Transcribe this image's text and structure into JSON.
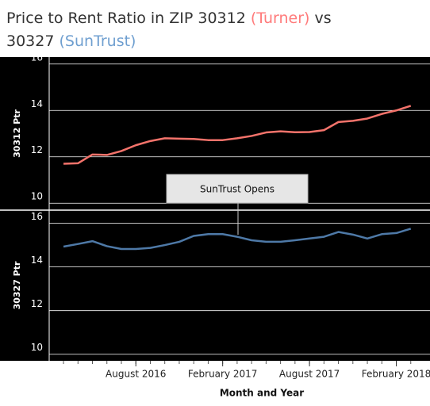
{
  "title": [
    {
      "text": "Price to Rent Ratio in ZIP 30312 ",
      "color": "#333333"
    },
    {
      "text": "(Turner)",
      "color": "#ff7b7b"
    },
    {
      "text": " vs",
      "color": "#333333"
    },
    {
      "text": "30327 ",
      "color": "#333333"
    },
    {
      "text": "(SunTrust)",
      "color": "#6f9fd0"
    }
  ],
  "annotation": "SunTrust Opens",
  "chart_data": [
    {
      "type": "line",
      "ylabel": "30312 Ptr",
      "x": [
        "2016-03",
        "2016-04",
        "2016-05",
        "2016-06",
        "2016-07",
        "2016-08",
        "2016-09",
        "2016-10",
        "2016-11",
        "2016-12",
        "2017-01",
        "2017-02",
        "2017-03",
        "2017-04",
        "2017-05",
        "2017-06",
        "2017-07",
        "2017-08",
        "2017-09",
        "2017-10",
        "2017-11",
        "2017-12",
        "2018-01",
        "2018-02",
        "2018-03"
      ],
      "xlim": [
        "2016-02",
        "2018-04"
      ],
      "ylim": [
        9.7,
        16.3
      ],
      "yticks": [
        10,
        12,
        14,
        16
      ],
      "grid": true,
      "series": [
        {
          "name": "30312 Ptr",
          "color": "#f4736b",
          "values": [
            11.7,
            11.72,
            12.1,
            12.08,
            12.25,
            12.5,
            12.68,
            12.8,
            12.78,
            12.77,
            12.72,
            12.72,
            12.8,
            12.9,
            13.05,
            13.1,
            13.06,
            13.07,
            13.15,
            13.5,
            13.55,
            13.65,
            13.85,
            14.0,
            14.2
          ]
        }
      ]
    },
    {
      "type": "line",
      "ylabel": "30327 Ptr",
      "xlabel": "Month and Year",
      "x": [
        "2016-03",
        "2016-04",
        "2016-05",
        "2016-06",
        "2016-07",
        "2016-08",
        "2016-09",
        "2016-10",
        "2016-11",
        "2016-12",
        "2017-01",
        "2017-02",
        "2017-03",
        "2017-04",
        "2017-05",
        "2017-06",
        "2017-07",
        "2017-08",
        "2017-09",
        "2017-10",
        "2017-11",
        "2017-12",
        "2018-01",
        "2018-02",
        "2018-03"
      ],
      "xlim": [
        "2016-02",
        "2018-04"
      ],
      "xticks": [
        {
          "value": "2016-08",
          "label": "August 2016"
        },
        {
          "value": "2017-02",
          "label": "February 2017"
        },
        {
          "value": "2017-08",
          "label": "August 2017"
        },
        {
          "value": "2018-02",
          "label": "February 2018"
        }
      ],
      "ylim": [
        9.7,
        16.6
      ],
      "yticks": [
        10,
        12,
        14,
        16
      ],
      "grid": true,
      "series": [
        {
          "name": "30327 Ptr",
          "color": "#4e79a7",
          "values": [
            14.93,
            15.05,
            15.18,
            14.95,
            14.82,
            14.82,
            14.87,
            15.0,
            15.15,
            15.42,
            15.5,
            15.5,
            15.38,
            15.22,
            15.15,
            15.15,
            15.22,
            15.3,
            15.38,
            15.6,
            15.48,
            15.3,
            15.5,
            15.55,
            15.75
          ]
        }
      ]
    }
  ]
}
